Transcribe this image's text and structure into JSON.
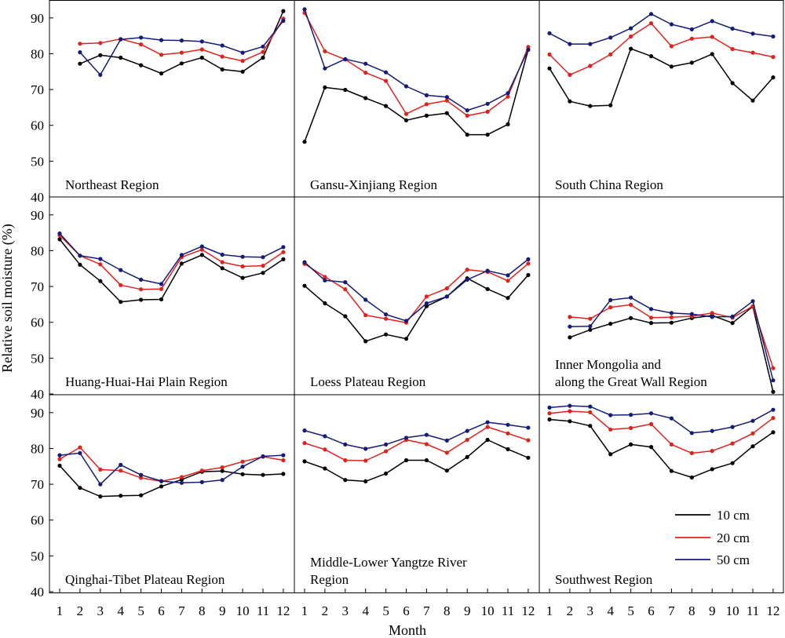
{
  "y_axis_title": "Relative soil moisture (%)",
  "x_axis_title": "Month",
  "y_ticks": [
    "40",
    "50",
    "60",
    "70",
    "80",
    "90"
  ],
  "x_ticks": [
    "1",
    "2",
    "3",
    "4",
    "5",
    "6",
    "7",
    "8",
    "9",
    "10",
    "11",
    "12"
  ],
  "legend": {
    "items": [
      {
        "label": "10 cm",
        "color": "#000000"
      },
      {
        "label": "20 cm",
        "color": "#e3211c"
      },
      {
        "label": "50 cm",
        "color": "#141c7a"
      }
    ]
  },
  "chart_data": {
    "type": "line",
    "layout": "3x3 small multiples",
    "ylim": [
      40,
      95
    ],
    "xlim": [
      0.5,
      12.2
    ],
    "x": [
      1,
      2,
      3,
      4,
      5,
      6,
      7,
      8,
      9,
      10,
      11,
      12
    ],
    "series_names": [
      "10 cm",
      "20 cm",
      "50 cm"
    ],
    "panels": [
      {
        "label": "Northeast Region",
        "series": [
          {
            "name": "10 cm",
            "values": [
              null,
              77.2,
              79.6,
              78.9,
              76.8,
              74.5,
              77.3,
              78.9,
              75.6,
              75.0,
              78.9,
              91.9
            ]
          },
          {
            "name": "20 cm",
            "values": [
              null,
              82.8,
              83.0,
              84.1,
              82.6,
              79.7,
              80.3,
              81.2,
              79.2,
              78.0,
              80.5,
              89.8
            ]
          },
          {
            "name": "50 cm",
            "values": [
              null,
              80.4,
              74.1,
              84.0,
              84.5,
              83.8,
              83.7,
              83.4,
              82.3,
              80.3,
              82.0,
              89.2
            ]
          }
        ]
      },
      {
        "label": "Gansu-Xinjiang Region",
        "series": [
          {
            "name": "10 cm",
            "values": [
              55.4,
              70.6,
              69.9,
              67.6,
              65.4,
              61.4,
              62.7,
              63.4,
              57.4,
              57.4,
              60.3,
              81.1
            ]
          },
          {
            "name": "20 cm",
            "values": [
              91.4,
              80.7,
              78.4,
              74.7,
              72.4,
              63.2,
              65.9,
              66.9,
              62.7,
              63.8,
              68.0,
              81.9
            ]
          },
          {
            "name": "50 cm",
            "values": [
              92.4,
              75.9,
              78.5,
              77.2,
              74.8,
              70.9,
              68.4,
              67.9,
              64.2,
              66.0,
              69.0,
              81.1
            ]
          }
        ]
      },
      {
        "label": "South China Region",
        "series": [
          {
            "name": "10 cm",
            "values": [
              75.9,
              66.7,
              65.4,
              65.6,
              81.4,
              79.3,
              76.4,
              77.5,
              79.9,
              71.8,
              66.9,
              73.4
            ]
          },
          {
            "name": "20 cm",
            "values": [
              79.8,
              74.1,
              76.6,
              79.8,
              84.8,
              88.5,
              82.1,
              84.2,
              84.7,
              81.3,
              80.3,
              79.1
            ]
          },
          {
            "name": "50 cm",
            "values": [
              85.7,
              82.7,
              82.7,
              84.5,
              87.1,
              91.1,
              88.2,
              86.8,
              89.1,
              87.0,
              85.6,
              84.8
            ]
          }
        ]
      },
      {
        "label": "Huang-Huai-Hai Plain Region",
        "series": [
          {
            "name": "10 cm",
            "values": [
              83.2,
              76.1,
              71.5,
              65.7,
              66.3,
              66.4,
              76.4,
              78.8,
              75.1,
              72.4,
              73.8,
              77.6
            ]
          },
          {
            "name": "20 cm",
            "values": [
              84.3,
              78.6,
              76.2,
              70.4,
              69.2,
              69.3,
              78.2,
              80.3,
              76.8,
              75.6,
              75.8,
              79.6
            ]
          },
          {
            "name": "50 cm",
            "values": [
              84.8,
              78.6,
              77.7,
              74.6,
              71.9,
              70.7,
              78.8,
              81.2,
              78.9,
              78.3,
              78.2,
              81.0
            ]
          }
        ]
      },
      {
        "label": "Loess Plateau Region",
        "series": [
          {
            "name": "10 cm",
            "values": [
              70.2,
              65.3,
              61.7,
              54.7,
              56.6,
              55.4,
              64.5,
              67.2,
              72.3,
              69.3,
              66.8,
              73.2
            ]
          },
          {
            "name": "20 cm",
            "values": [
              76.3,
              72.7,
              69.2,
              62.0,
              61.0,
              59.9,
              67.2,
              69.5,
              74.7,
              74.1,
              71.6,
              76.4
            ]
          },
          {
            "name": "50 cm",
            "values": [
              76.8,
              71.7,
              71.2,
              66.3,
              62.2,
              60.4,
              65.3,
              67.2,
              71.9,
              74.4,
              73.1,
              77.6
            ]
          }
        ]
      },
      {
        "label": "Inner Mongolia and along the Great Wall Region",
        "label_lines": [
          "Inner Mongolia and",
          "along the Great Wall Region"
        ],
        "series": [
          {
            "name": "10 cm",
            "values": [
              null,
              55.8,
              57.9,
              59.6,
              61.2,
              59.8,
              59.9,
              61.2,
              61.9,
              59.8,
              64.4,
              40.6
            ]
          },
          {
            "name": "20 cm",
            "values": [
              null,
              61.5,
              61.0,
              64.2,
              64.9,
              61.3,
              61.4,
              61.7,
              62.6,
              61.3,
              64.5,
              47.2
            ]
          },
          {
            "name": "50 cm",
            "values": [
              null,
              58.8,
              58.9,
              66.2,
              66.9,
              63.7,
              62.6,
              62.3,
              61.5,
              61.6,
              65.9,
              43.8
            ]
          }
        ]
      },
      {
        "label": "Qinghai-Tibet Plateau Region",
        "series": [
          {
            "name": "10 cm",
            "values": [
              75.2,
              69.0,
              66.6,
              66.8,
              66.9,
              69.4,
              71.3,
              73.5,
              73.7,
              72.8,
              72.6,
              72.9
            ]
          },
          {
            "name": "20 cm",
            "values": [
              77.0,
              80.3,
              74.1,
              73.8,
              71.8,
              70.8,
              72.0,
              73.8,
              74.7,
              76.3,
              77.7,
              76.7
            ]
          },
          {
            "name": "50 cm",
            "values": [
              78.1,
              78.7,
              70.0,
              75.4,
              72.6,
              70.9,
              70.4,
              70.6,
              71.2,
              74.9,
              77.8,
              78.1
            ]
          }
        ]
      },
      {
        "label": "Middle-Lower Yangtze River Region",
        "label_lines": [
          "Middle-Lower Yangtze River",
          "Region"
        ],
        "series": [
          {
            "name": "10 cm",
            "values": [
              76.4,
              74.4,
              71.2,
              70.8,
              73.0,
              76.7,
              76.7,
              73.8,
              77.6,
              82.4,
              79.8,
              77.4
            ]
          },
          {
            "name": "20 cm",
            "values": [
              81.5,
              79.7,
              76.7,
              76.6,
              79.2,
              82.4,
              81.2,
              78.8,
              82.4,
              86.0,
              84.2,
              82.3
            ]
          },
          {
            "name": "50 cm",
            "values": [
              85.0,
              83.4,
              81.1,
              79.9,
              81.1,
              83.0,
              83.8,
              82.2,
              84.9,
              87.3,
              86.6,
              85.8
            ]
          }
        ]
      },
      {
        "label": "Southwest Region",
        "series": [
          {
            "name": "10 cm",
            "values": [
              88.1,
              87.6,
              86.3,
              78.4,
              81.1,
              80.4,
              73.7,
              71.9,
              74.2,
              75.9,
              80.6,
              84.5
            ]
          },
          {
            "name": "20 cm",
            "values": [
              89.8,
              90.4,
              90.1,
              85.3,
              85.7,
              86.8,
              81.1,
              78.7,
              79.3,
              81.4,
              84.2,
              88.5
            ]
          },
          {
            "name": "50 cm",
            "values": [
              91.4,
              91.9,
              91.7,
              89.3,
              89.4,
              89.8,
              88.4,
              84.3,
              84.9,
              86.0,
              87.7,
              90.8
            ]
          }
        ]
      }
    ]
  }
}
